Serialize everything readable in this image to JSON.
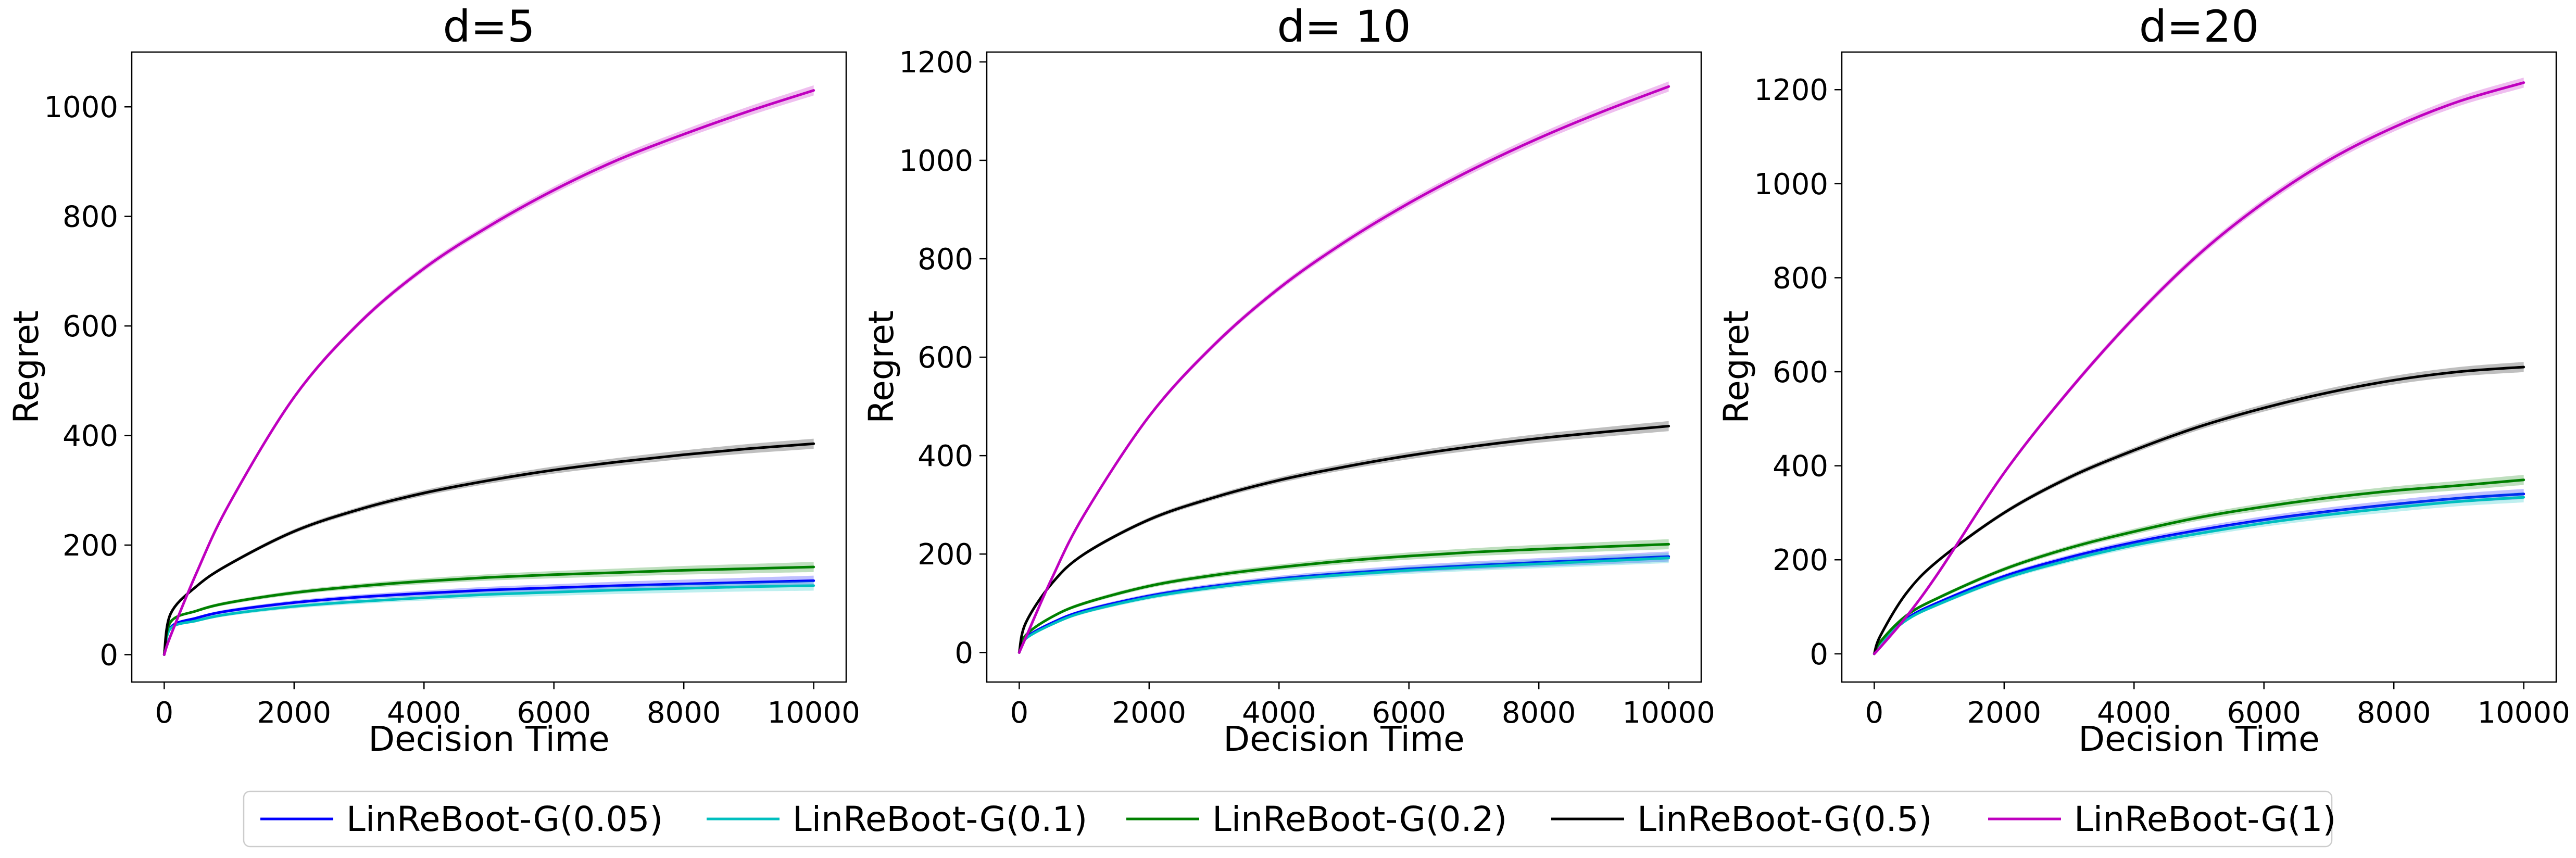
{
  "chart_data": [
    {
      "type": "line",
      "title": "d=5",
      "xlabel": "Decision Time",
      "ylabel": "Regret",
      "xlim": [
        -500,
        10500
      ],
      "ylim": [
        -50,
        1100
      ],
      "xticks": [
        0,
        2000,
        4000,
        6000,
        8000,
        10000
      ],
      "yticks": [
        0,
        200,
        400,
        600,
        800,
        1000
      ],
      "grid": false,
      "x": [
        0,
        100,
        500,
        1000,
        2000,
        3000,
        4000,
        5000,
        6000,
        7000,
        8000,
        9000,
        10000
      ],
      "series": [
        {
          "name": "LinReBoot-G(0.05)",
          "color": "#0000ff",
          "values": [
            0,
            50,
            67,
            80,
            95,
            105,
            112,
            118,
            122,
            126,
            129,
            132,
            135
          ]
        },
        {
          "name": "LinReBoot-G(0.1)",
          "color": "#00bfbf",
          "values": [
            0,
            48,
            62,
            74,
            88,
            97,
            104,
            110,
            114,
            118,
            121,
            124,
            126
          ]
        },
        {
          "name": "LinReBoot-G(0.2)",
          "color": "#008000",
          "values": [
            0,
            60,
            80,
            95,
            113,
            125,
            134,
            141,
            146,
            150,
            154,
            157,
            160
          ]
        },
        {
          "name": "LinReBoot-G(0.5)",
          "color": "#000000",
          "values": [
            0,
            75,
            125,
            165,
            225,
            265,
            295,
            318,
            337,
            352,
            365,
            376,
            385
          ]
        },
        {
          "name": "LinReBoot-G(1)",
          "color": "#bf00bf",
          "values": [
            0,
            35,
            150,
            275,
            470,
            605,
            705,
            782,
            848,
            904,
            950,
            992,
            1030
          ]
        }
      ]
    },
    {
      "type": "line",
      "title": "d= 10",
      "xlabel": "Decision Time",
      "ylabel": "Regret",
      "xlim": [
        -500,
        10500
      ],
      "ylim": [
        -60,
        1220
      ],
      "xticks": [
        0,
        2000,
        4000,
        6000,
        8000,
        10000
      ],
      "yticks": [
        0,
        200,
        400,
        600,
        800,
        1000,
        1200
      ],
      "grid": false,
      "x": [
        0,
        100,
        500,
        1000,
        2000,
        3000,
        4000,
        5000,
        6000,
        7000,
        8000,
        9000,
        10000
      ],
      "series": [
        {
          "name": "LinReBoot-G(0.05)",
          "color": "#0000ff",
          "values": [
            0,
            30,
            60,
            85,
            115,
            135,
            150,
            161,
            170,
            177,
            183,
            189,
            195
          ]
        },
        {
          "name": "LinReBoot-G(0.1)",
          "color": "#00bfbf",
          "values": [
            0,
            28,
            57,
            82,
            112,
            132,
            147,
            158,
            167,
            174,
            180,
            186,
            192
          ]
        },
        {
          "name": "LinReBoot-G(0.2)",
          "color": "#008000",
          "values": [
            0,
            35,
            72,
            100,
            135,
            157,
            173,
            186,
            196,
            204,
            210,
            215,
            220
          ]
        },
        {
          "name": "LinReBoot-G(0.5)",
          "color": "#000000",
          "values": [
            0,
            60,
            140,
            200,
            270,
            315,
            350,
            377,
            400,
            419,
            435,
            448,
            460
          ]
        },
        {
          "name": "LinReBoot-G(1)",
          "color": "#bf00bf",
          "values": [
            0,
            30,
            150,
            280,
            480,
            625,
            740,
            833,
            913,
            983,
            1045,
            1100,
            1150
          ]
        }
      ]
    },
    {
      "type": "line",
      "title": "d=20",
      "xlabel": "Decision Time",
      "ylabel": "Regret",
      "xlim": [
        -500,
        10500
      ],
      "ylim": [
        -60,
        1280
      ],
      "xticks": [
        0,
        2000,
        4000,
        6000,
        8000,
        10000
      ],
      "yticks": [
        0,
        200,
        400,
        600,
        800,
        1000,
        1200
      ],
      "grid": false,
      "x": [
        0,
        100,
        500,
        1000,
        2000,
        3000,
        4000,
        5000,
        6000,
        7000,
        8000,
        9000,
        10000
      ],
      "series": [
        {
          "name": "LinReBoot-G(0.05)",
          "color": "#0000ff",
          "values": [
            0,
            25,
            75,
            110,
            165,
            205,
            237,
            263,
            285,
            303,
            318,
            331,
            340
          ]
        },
        {
          "name": "LinReBoot-G(0.1)",
          "color": "#00bfbf",
          "values": [
            0,
            24,
            72,
            106,
            160,
            199,
            231,
            256,
            278,
            296,
            311,
            324,
            333
          ]
        },
        {
          "name": "LinReBoot-G(0.2)",
          "color": "#008000",
          "values": [
            0,
            27,
            82,
            120,
            180,
            225,
            260,
            290,
            313,
            332,
            347,
            358,
            370
          ]
        },
        {
          "name": "LinReBoot-G(0.5)",
          "color": "#000000",
          "values": [
            0,
            40,
            130,
            200,
            300,
            375,
            433,
            483,
            523,
            556,
            582,
            600,
            610
          ]
        },
        {
          "name": "LinReBoot-G(1)",
          "color": "#bf00bf",
          "values": [
            0,
            15,
            80,
            175,
            385,
            560,
            715,
            850,
            960,
            1050,
            1120,
            1175,
            1215
          ]
        }
      ]
    }
  ],
  "legend": {
    "placement": "bottom-center",
    "entries": [
      {
        "label": "LinReBoot-G(0.05)",
        "color": "#0000ff"
      },
      {
        "label": "LinReBoot-G(0.1)",
        "color": "#00bfbf"
      },
      {
        "label": "LinReBoot-G(0.2)",
        "color": "#008000"
      },
      {
        "label": "LinReBoot-G(0.5)",
        "color": "#000000"
      },
      {
        "label": "LinReBoot-G(1)",
        "color": "#bf00bf"
      }
    ]
  }
}
